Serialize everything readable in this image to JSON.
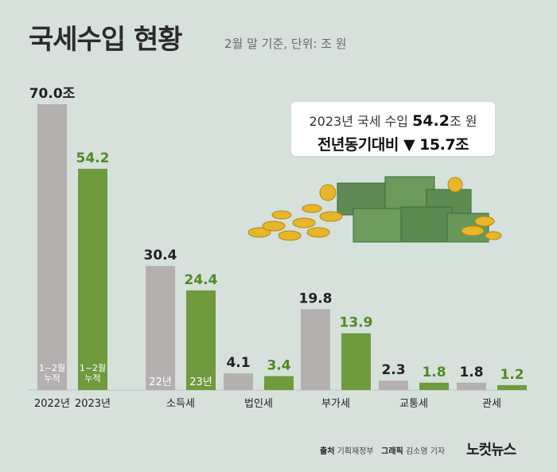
{
  "header": {
    "title": "국세수입 현황",
    "subtitle": "2월 말 기준, 단위: 조 원"
  },
  "summary": {
    "prefix": "2023년 국세 수입",
    "amount": "54.2",
    "suffix": "조 원",
    "comparison": "전년동기대비 ▼ 15.7조"
  },
  "footer": {
    "source_label": "출처",
    "source": "기획재정부",
    "graphic_label": "그래픽",
    "graphic": "김소영 기자",
    "logo": "노컷뉴스"
  },
  "colors": {
    "gray_bar": "#b5b0b0",
    "green_bar": "#6f9a3e",
    "green_text": "#4f8a23",
    "gray_text": "#222222"
  },
  "chart_data": {
    "type": "bar",
    "title": "국세수입 현황",
    "unit": "조 원",
    "ylim": [
      0,
      70
    ],
    "groups": [
      {
        "name": "total",
        "category_labels": [
          "2022년",
          "2023년"
        ],
        "inner_labels": [
          "1~2월 누적",
          "1~2월 누적"
        ],
        "value_labels": [
          "70.0조",
          "54.2"
        ],
        "values": [
          70.0,
          54.2
        ]
      },
      {
        "name": "소득세",
        "category_labels": [
          "소득세"
        ],
        "inner_labels": [
          "22년",
          "23년"
        ],
        "value_labels": [
          "30.4",
          "24.4"
        ],
        "values": [
          30.4,
          24.4
        ]
      },
      {
        "name": "법인세",
        "category_labels": [
          "법인세"
        ],
        "inner_labels": [],
        "value_labels": [
          "4.1",
          "3.4"
        ],
        "values": [
          4.1,
          3.4
        ]
      },
      {
        "name": "부가세",
        "category_labels": [
          "부가세"
        ],
        "inner_labels": [],
        "value_labels": [
          "19.8",
          "13.9"
        ],
        "values": [
          19.8,
          13.9
        ]
      },
      {
        "name": "교통세",
        "category_labels": [
          "교통세"
        ],
        "inner_labels": [],
        "value_labels": [
          "2.3",
          "1.8"
        ],
        "values": [
          2.3,
          1.8
        ]
      },
      {
        "name": "관세",
        "category_labels": [
          "관세"
        ],
        "inner_labels": [],
        "value_labels": [
          "1.8",
          "1.2"
        ],
        "values": [
          1.8,
          1.2
        ]
      }
    ],
    "series": [
      "2022",
      "2023"
    ]
  }
}
